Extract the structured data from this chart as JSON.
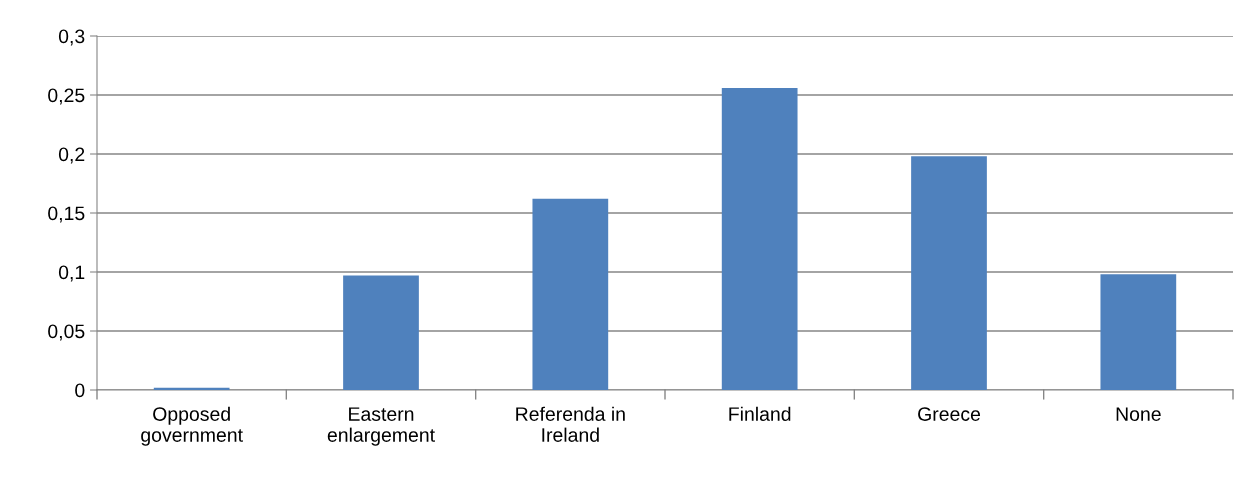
{
  "chart_data": {
    "type": "bar",
    "categories": [
      "Opposed\ngovernment",
      "Eastern\nenlargement",
      "Referenda in\nIreland",
      "Finland",
      "Greece",
      "None"
    ],
    "values": [
      0.002,
      0.097,
      0.162,
      0.256,
      0.198,
      0.098
    ],
    "color": "#4f81bd",
    "ylim": [
      0,
      0.3
    ],
    "yticks": [
      {
        "value": 0,
        "label": "0"
      },
      {
        "value": 0.05,
        "label": "0,05"
      },
      {
        "value": 0.1,
        "label": "0,1"
      },
      {
        "value": 0.15,
        "label": "0,15"
      },
      {
        "value": 0.2,
        "label": "0,2"
      },
      {
        "value": 0.25,
        "label": "0,25"
      },
      {
        "value": 0.3,
        "label": "0,3"
      }
    ],
    "grid": "y",
    "legend": false
  }
}
